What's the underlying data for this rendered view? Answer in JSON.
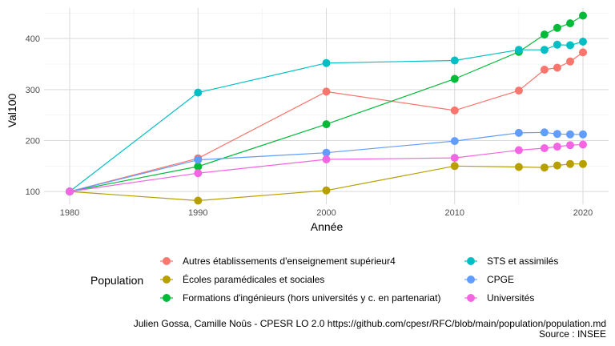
{
  "chart_data": {
    "type": "line",
    "xlabel": "Année",
    "ylabel": "Val100",
    "xlim": [
      1980,
      2020
    ],
    "ylim": [
      75,
      460
    ],
    "x_ticks": [
      1980,
      1990,
      2000,
      2010,
      2020
    ],
    "y_ticks": [
      100,
      200,
      300,
      400
    ],
    "grid": true,
    "legend_title": "Population",
    "legend_position": "bottom",
    "series": [
      {
        "name": "Autres établissements d'enseignement supérieur4",
        "color": "#F8766D",
        "points": [
          [
            1980,
            100
          ],
          [
            1990,
            165
          ],
          [
            2000,
            296
          ],
          [
            2010,
            259
          ],
          [
            2015,
            298
          ],
          [
            2017,
            339
          ],
          [
            2018,
            343
          ],
          [
            2019,
            355
          ],
          [
            2020,
            373
          ]
        ]
      },
      {
        "name": "Écoles paramédicales et sociales",
        "color": "#B79F00",
        "points": [
          [
            1980,
            100
          ],
          [
            1990,
            82
          ],
          [
            2000,
            102
          ],
          [
            2010,
            150
          ],
          [
            2015,
            148
          ],
          [
            2017,
            147
          ],
          [
            2018,
            151
          ],
          [
            2019,
            154
          ],
          [
            2020,
            154
          ]
        ]
      },
      {
        "name": "Formations d'ingénieurs (hors universités y c. en partenariat)",
        "color": "#00BA38",
        "points": [
          [
            1980,
            100
          ],
          [
            1990,
            149
          ],
          [
            2000,
            232
          ],
          [
            2010,
            321
          ],
          [
            2015,
            374
          ],
          [
            2017,
            408
          ],
          [
            2018,
            421
          ],
          [
            2019,
            430
          ],
          [
            2020,
            445
          ]
        ]
      },
      {
        "name": "STS et assimilés",
        "color": "#00BFC4",
        "points": [
          [
            1980,
            100
          ],
          [
            1990,
            294
          ],
          [
            2000,
            352
          ],
          [
            2010,
            357
          ],
          [
            2015,
            378
          ],
          [
            2017,
            378
          ],
          [
            2018,
            388
          ],
          [
            2019,
            387
          ],
          [
            2020,
            394
          ]
        ]
      },
      {
        "name": "CPGE",
        "color": "#619CFF",
        "points": [
          [
            1980,
            100
          ],
          [
            1990,
            162
          ],
          [
            2000,
            176
          ],
          [
            2010,
            199
          ],
          [
            2015,
            215
          ],
          [
            2017,
            216
          ],
          [
            2018,
            213
          ],
          [
            2019,
            212
          ],
          [
            2020,
            212
          ]
        ]
      },
      {
        "name": "Universités",
        "color": "#F564E3",
        "points": [
          [
            1980,
            100
          ],
          [
            1990,
            136
          ],
          [
            2000,
            163
          ],
          [
            2010,
            166
          ],
          [
            2015,
            181
          ],
          [
            2017,
            185
          ],
          [
            2018,
            188
          ],
          [
            2019,
            191
          ],
          [
            2020,
            192
          ]
        ]
      }
    ],
    "caption_line1": "Julien Gossa, Camille Noûs - CPESR LO 2.0 https://github.com/cpesr/RFC/blob/main/population/population.md",
    "caption_line2": "Source : INSEE"
  }
}
